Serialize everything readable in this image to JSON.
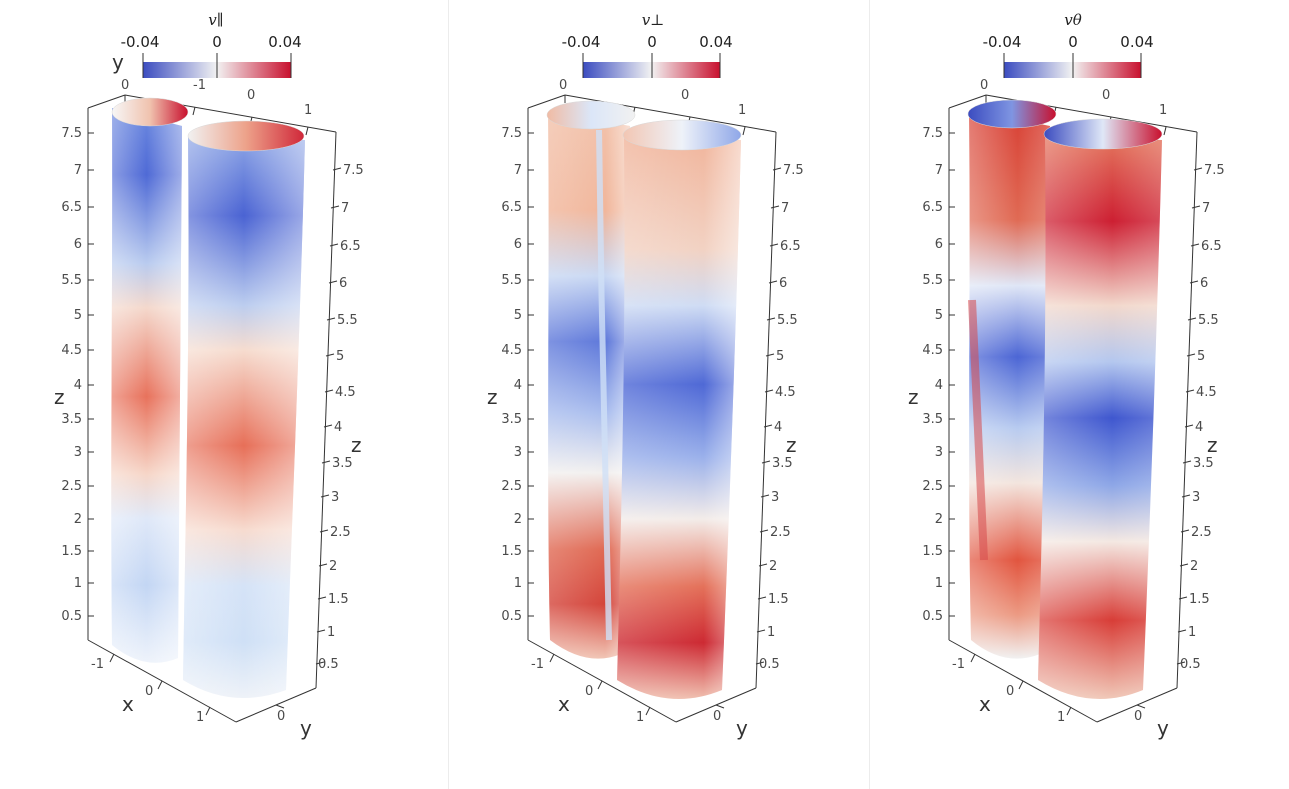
{
  "colormap": {
    "low": "#3b4cc0",
    "mid": "#f2f2f2",
    "high": "#c8102e"
  },
  "panels": [
    {
      "title": "v∥",
      "colorbar": {
        "ticks": [
          "-0.04",
          "0",
          "0.04"
        ]
      },
      "axes": {
        "z_left_label": "z",
        "z_right_label": "z",
        "x_label": "x",
        "y_label": "y",
        "y_top_label": "y",
        "z_left_ticks": [
          "0.5",
          "1",
          "1.5",
          "2",
          "2.5",
          "3",
          "3.5",
          "4",
          "4.5",
          "5",
          "5.5",
          "6",
          "6.5",
          "7",
          "7.5"
        ],
        "z_right_ticks": [
          "0.5",
          "1",
          "1.5",
          "2",
          "2.5",
          "3",
          "3.5",
          "4",
          "4.5",
          "5",
          "5.5",
          "6",
          "6.5",
          "7",
          "7.5"
        ],
        "x_ticks": [
          "-1",
          "0",
          "1"
        ],
        "y_ticks": [
          "0"
        ],
        "top_ticks": [
          "0",
          "-1",
          "0",
          "1"
        ]
      }
    },
    {
      "title": "v⊥",
      "colorbar": {
        "ticks": [
          "-0.04",
          "0",
          "0.04"
        ]
      },
      "axes": {
        "z_left_label": "z",
        "z_right_label": "z",
        "x_label": "x",
        "y_label": "y",
        "y_top_label": "",
        "z_left_ticks": [
          "0.5",
          "1",
          "1.5",
          "2",
          "2.5",
          "3",
          "3.5",
          "4",
          "4.5",
          "5",
          "5.5",
          "6",
          "6.5",
          "7",
          "7.5"
        ],
        "z_right_ticks": [
          "0.5",
          "1",
          "1.5",
          "2",
          "2.5",
          "3",
          "3.5",
          "4",
          "4.5",
          "5",
          "5.5",
          "6",
          "6.5",
          "7",
          "7.5"
        ],
        "x_ticks": [
          "-1",
          "0",
          "1"
        ],
        "y_ticks": [
          "0"
        ],
        "top_ticks": [
          "0",
          "",
          "0",
          "1"
        ]
      }
    },
    {
      "title": "vθ",
      "colorbar": {
        "ticks": [
          "-0.04",
          "0",
          "0.04"
        ]
      },
      "axes": {
        "z_left_label": "z",
        "z_right_label": "z",
        "x_label": "x",
        "y_label": "y",
        "y_top_label": "",
        "z_left_ticks": [
          "0.5",
          "1",
          "1.5",
          "2",
          "2.5",
          "3",
          "3.5",
          "4",
          "4.5",
          "5",
          "5.5",
          "6",
          "6.5",
          "7",
          "7.5"
        ],
        "z_right_ticks": [
          "0.5",
          "1",
          "1.5",
          "2",
          "2.5",
          "3",
          "3.5",
          "4",
          "4.5",
          "5",
          "5.5",
          "6",
          "6.5",
          "7",
          "7.5"
        ],
        "x_ticks": [
          "-1",
          "0",
          "1"
        ],
        "y_ticks": [
          "0"
        ],
        "top_ticks": [
          "0",
          "",
          "0",
          "1"
        ]
      }
    }
  ]
}
